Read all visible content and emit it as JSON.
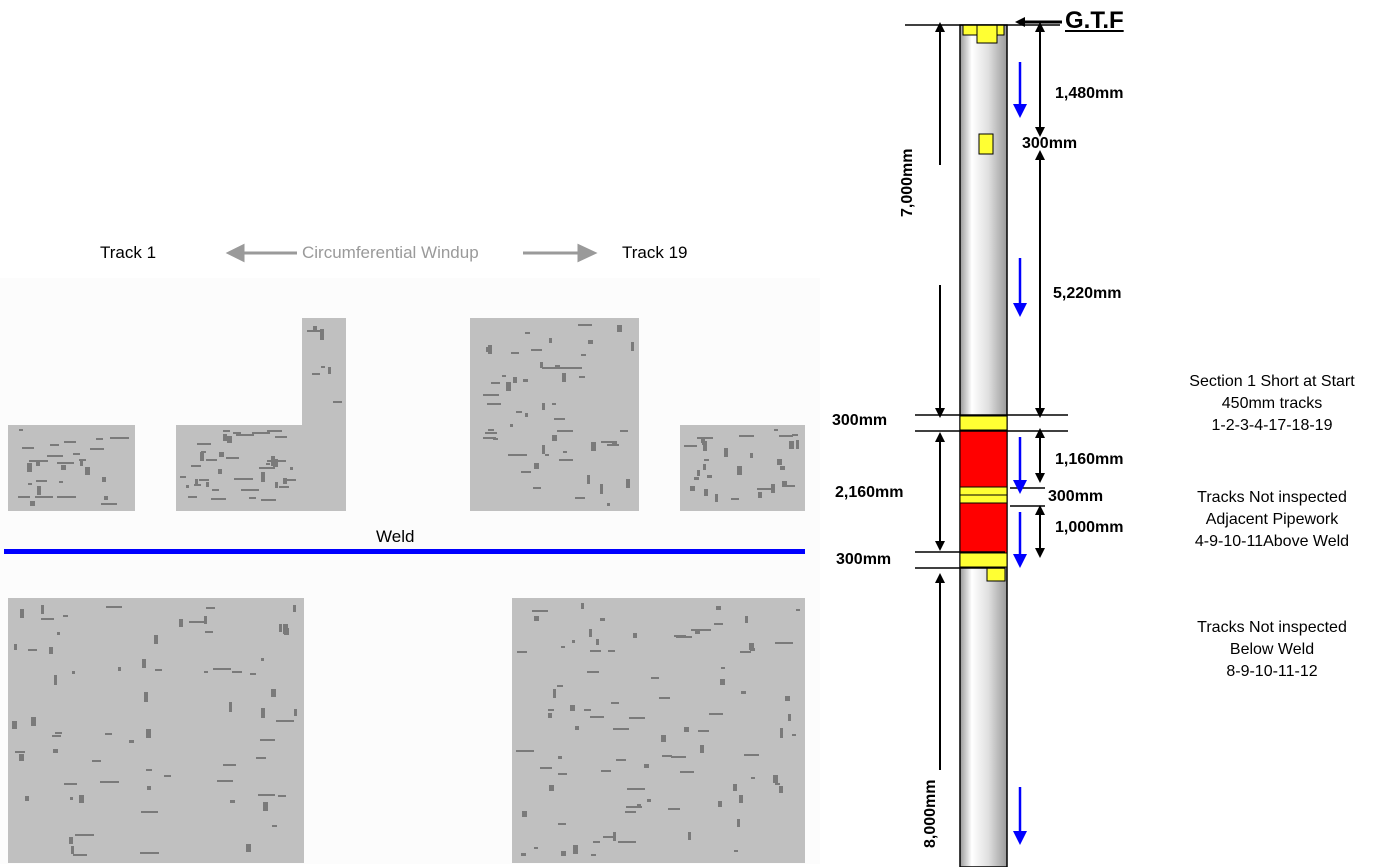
{
  "scan": {
    "track_start": "Track 1",
    "track_end": "Track 19",
    "windup": "Circumferential Windup",
    "weld": "Weld"
  },
  "pipe": {
    "gtf": "G.T.F",
    "dims": {
      "d1480": "1,480mm",
      "d300a": "300mm",
      "d7000": "7,000mm",
      "d5220": "5,220mm",
      "d300b": "300mm",
      "d1160": "1,160mm",
      "d2160": "2,160mm",
      "d300c": "300mm",
      "d1000": "1,000mm",
      "d300d": "300mm",
      "d8000": "8,000mm"
    }
  },
  "notes": {
    "n1": [
      "Section 1 Short at Start",
      "450mm tracks",
      "1-2-3-4-17-18-19"
    ],
    "n2": [
      "Tracks Not inspected",
      "Adjacent Pipework",
      "4-9-10-11Above Weld"
    ],
    "n3": [
      "Tracks Not inspected",
      "Below Weld",
      "8-9-10-11-12"
    ]
  },
  "colors": {
    "pipe_body": "#d8d8d8",
    "band_yellow": "#ffff33",
    "section_red": "#ff0000",
    "weld_blue": "#0000ff",
    "scan_grey": "#c0c0c0",
    "defect_grey": "#7a7a7a"
  }
}
